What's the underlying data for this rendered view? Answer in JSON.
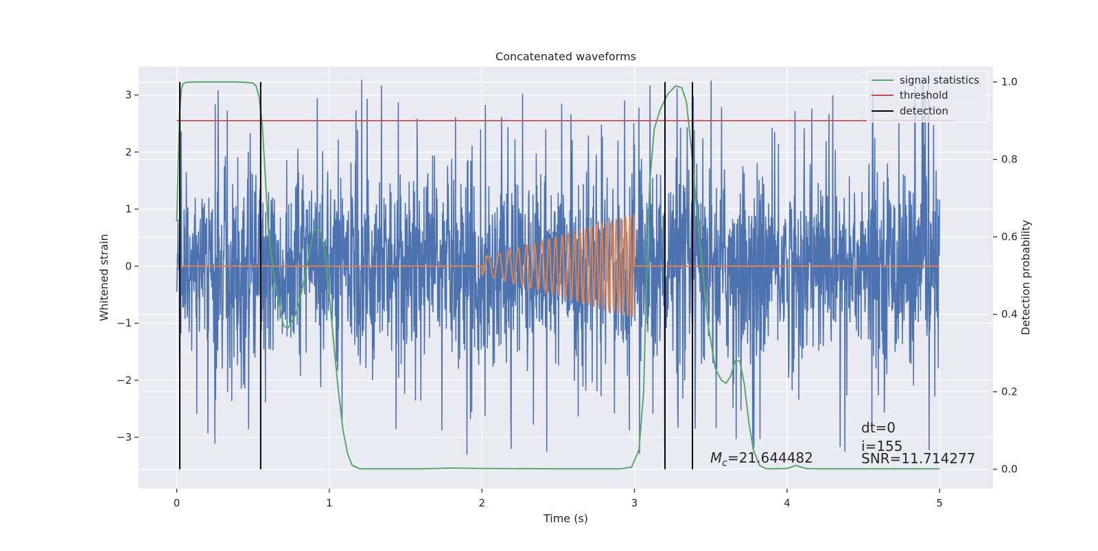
{
  "chart_data": {
    "type": "line",
    "title": "Concatenated waveforms",
    "xlabel": "Time (s)",
    "ylabel": "Whitened strain",
    "ylabel_right": "Detection probability",
    "xlim": [
      -0.25,
      5.35
    ],
    "ylim": [
      -3.9,
      3.5
    ],
    "ylim_right": [
      -0.05,
      1.04
    ],
    "x_ticks": [
      0,
      1,
      2,
      3,
      4,
      5
    ],
    "x_tick_labels": [
      "0",
      "1",
      "2",
      "3",
      "4",
      "5"
    ],
    "y_ticks": [
      -3,
      -2,
      -1,
      0,
      1,
      2,
      3
    ],
    "y_tick_labels": [
      "−3",
      "−2",
      "−1",
      "0",
      "1",
      "2",
      "3"
    ],
    "y_ticks_right": [
      0.0,
      0.2,
      0.4,
      0.6,
      0.8,
      1.0
    ],
    "y_tick_labels_right": [
      "0.0",
      "0.2",
      "0.4",
      "0.6",
      "0.8",
      "1.0"
    ],
    "grid": true,
    "legend_position": "top-right",
    "legend": [
      {
        "label": "signal statistics",
        "color": "#55a868"
      },
      {
        "label": "threshold",
        "color": "#c44e52"
      },
      {
        "label": "detection",
        "color": "#000000"
      }
    ],
    "colors": {
      "noise": "#4c72b0",
      "chirp": "#dd8452",
      "statistic": "#55a868",
      "threshold": "#c44e52",
      "detection": "#000000",
      "plot_background": "#eaeaf2",
      "grid": "#ffffff"
    },
    "series": [
      {
        "axis": "left",
        "kind": "noise",
        "x_range": [
          0,
          5
        ],
        "typical_range": [
          -1.6,
          1.9
        ],
        "extremes": [
          -3.6,
          3.4
        ]
      },
      {
        "axis": "left",
        "kind": "chirp",
        "x_range": [
          2.0,
          3.0
        ],
        "amplitude_start": 0.15,
        "amplitude_end": 0.9,
        "frequency_start_hz": 12,
        "frequency_end_hz": 35
      },
      {
        "axis": "right",
        "name": "signal statistics",
        "x": [
          0.0,
          0.01,
          0.02,
          0.03,
          0.04,
          0.06,
          0.1,
          0.2,
          0.3,
          0.4,
          0.45,
          0.5,
          0.52,
          0.54,
          0.56,
          0.58,
          0.6,
          0.63,
          0.66,
          0.7,
          0.73,
          0.78,
          0.82,
          0.86,
          0.9,
          0.94,
          0.97,
          1.0,
          1.03,
          1.06,
          1.09,
          1.12,
          1.15,
          1.2,
          1.4,
          1.6,
          1.8,
          2.0,
          2.5,
          2.9,
          2.98,
          3.03,
          3.06,
          3.08,
          3.1,
          3.13,
          3.17,
          3.22,
          3.27,
          3.31,
          3.34,
          3.37,
          3.42,
          3.48,
          3.53,
          3.57,
          3.6,
          3.63,
          3.66,
          3.69,
          3.72,
          3.75,
          3.78,
          3.82,
          3.86,
          3.9,
          4.0,
          4.06,
          4.12,
          4.2,
          4.5,
          5.0
        ],
        "y": [
          0.64,
          0.8,
          0.93,
          0.98,
          0.995,
          0.999,
          1.0,
          1.0,
          1.0,
          1.0,
          0.999,
          0.997,
          0.99,
          0.96,
          0.89,
          0.76,
          0.62,
          0.52,
          0.45,
          0.37,
          0.365,
          0.4,
          0.46,
          0.54,
          0.62,
          0.615,
          0.56,
          0.45,
          0.32,
          0.2,
          0.1,
          0.04,
          0.01,
          0.001,
          0.001,
          0.001,
          0.003,
          0.002,
          0.001,
          0.001,
          0.005,
          0.05,
          0.2,
          0.5,
          0.74,
          0.88,
          0.93,
          0.97,
          0.99,
          0.985,
          0.95,
          0.84,
          0.62,
          0.38,
          0.26,
          0.23,
          0.222,
          0.24,
          0.28,
          0.28,
          0.22,
          0.12,
          0.05,
          0.01,
          0.002,
          0.001,
          0.002,
          0.01,
          0.002,
          0.001,
          0.001,
          0.001
        ]
      },
      {
        "axis": "right",
        "name": "threshold",
        "x": [
          0.0,
          5.1
        ],
        "y": [
          0.9,
          0.9
        ]
      }
    ],
    "detections": [
      0.02,
      0.55,
      3.2,
      3.38
    ],
    "annotations": {
      "dt": "dt=0",
      "i": "i=155",
      "snr": "SNR=11.714277",
      "mc_prefix": "M",
      "mc_subscript": "c",
      "mc_value": "=21.644482"
    }
  }
}
